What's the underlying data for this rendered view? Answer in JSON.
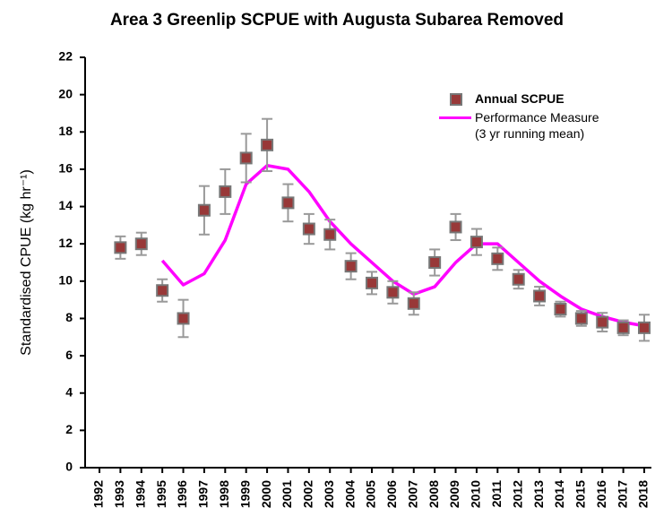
{
  "chart_data": {
    "type": "combo",
    "title": "Area 3 Greenlip SCPUE with Augusta Subarea Removed",
    "y_label": "Standardised CPUE (kg hr⁻¹)",
    "categories": [
      "1992",
      "1993",
      "1994",
      "1995",
      "1996",
      "1997",
      "1998",
      "1999",
      "2000",
      "2001",
      "2002",
      "2003",
      "2004",
      "2005",
      "2006",
      "2007",
      "2008",
      "2009",
      "2010",
      "2011",
      "2012",
      "2013",
      "2014",
      "2015",
      "2016",
      "2017",
      "2018"
    ],
    "series": [
      {
        "name": "Annual SCPUE",
        "type": "scatter",
        "color": "#983838",
        "values": [
          null,
          11.8,
          12.0,
          9.5,
          8.0,
          13.8,
          14.8,
          16.6,
          17.3,
          14.2,
          12.8,
          12.5,
          10.8,
          9.9,
          9.4,
          8.8,
          11.0,
          12.9,
          12.1,
          11.2,
          10.1,
          9.2,
          8.5,
          8.0,
          7.8,
          7.5,
          7.5
        ],
        "errors": [
          null,
          0.6,
          0.6,
          0.6,
          1.0,
          1.3,
          1.2,
          1.3,
          1.4,
          1.0,
          0.8,
          0.8,
          0.7,
          0.6,
          0.6,
          0.6,
          0.7,
          0.7,
          0.7,
          0.6,
          0.5,
          0.5,
          0.4,
          0.4,
          0.5,
          0.4,
          0.7
        ]
      },
      {
        "name": "Performance Measure\n(3 yr running mean)",
        "type": "line",
        "color": "#ff00ff",
        "values": [
          null,
          null,
          null,
          11.1,
          9.8,
          10.4,
          12.2,
          15.2,
          16.2,
          16.0,
          14.8,
          13.2,
          12.0,
          11.0,
          10.0,
          9.3,
          9.7,
          11.0,
          12.0,
          12.0,
          11.0,
          10.0,
          9.2,
          8.5,
          8.1,
          7.8,
          7.6
        ]
      }
    ],
    "ylim": [
      0,
      22
    ],
    "yticks": [
      0,
      2,
      4,
      6,
      8,
      10,
      12,
      14,
      16,
      18,
      20,
      22
    ]
  }
}
